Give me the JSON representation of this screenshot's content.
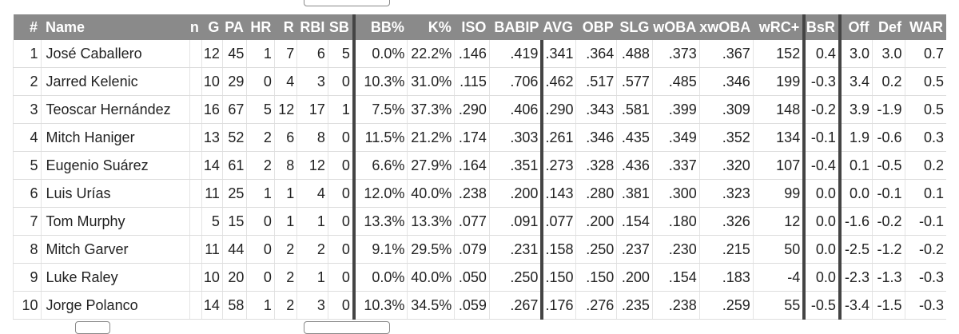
{
  "headers": [
    "#",
    "Name",
    "n",
    "G",
    "PA",
    "HR",
    "R",
    "RBI",
    "SB",
    "BB%",
    "K%",
    "ISO",
    "BABIP",
    "AVG",
    "OBP",
    "SLG",
    "wOBA",
    "xwOBA",
    "wRC+",
    "BsR",
    "Off",
    "Def",
    "WAR"
  ],
  "rows": [
    [
      "1",
      "José Caballero",
      "",
      "12",
      "45",
      "1",
      "7",
      "6",
      "5",
      "0.0%",
      "22.2%",
      ".146",
      ".419",
      ".341",
      ".364",
      ".488",
      ".373",
      ".367",
      "152",
      "0.4",
      "3.0",
      "3.0",
      "0.7"
    ],
    [
      "2",
      "Jarred Kelenic",
      "",
      "10",
      "29",
      "0",
      "4",
      "3",
      "0",
      "10.3%",
      "31.0%",
      ".115",
      ".706",
      ".462",
      ".517",
      ".577",
      ".485",
      ".346",
      "199",
      "-0.3",
      "3.4",
      "0.2",
      "0.5"
    ],
    [
      "3",
      "Teoscar Hernández",
      "",
      "16",
      "67",
      "5",
      "12",
      "17",
      "1",
      "7.5%",
      "37.3%",
      ".290",
      ".406",
      ".290",
      ".343",
      ".581",
      ".399",
      ".309",
      "148",
      "-0.2",
      "3.9",
      "-1.9",
      "0.5"
    ],
    [
      "4",
      "Mitch Haniger",
      "",
      "13",
      "52",
      "2",
      "6",
      "8",
      "0",
      "11.5%",
      "21.2%",
      ".174",
      ".303",
      ".261",
      ".346",
      ".435",
      ".349",
      ".352",
      "134",
      "-0.1",
      "1.9",
      "-0.6",
      "0.3"
    ],
    [
      "5",
      "Eugenio Suárez",
      "",
      "14",
      "61",
      "2",
      "8",
      "12",
      "0",
      "6.6%",
      "27.9%",
      ".164",
      ".351",
      ".273",
      ".328",
      ".436",
      ".337",
      ".320",
      "107",
      "-0.4",
      "0.1",
      "-0.5",
      "0.2"
    ],
    [
      "6",
      "Luis Urías",
      "",
      "11",
      "25",
      "1",
      "1",
      "4",
      "0",
      "12.0%",
      "40.0%",
      ".238",
      ".200",
      ".143",
      ".280",
      ".381",
      ".300",
      ".323",
      "99",
      "0.0",
      "0.0",
      "-0.1",
      "0.1"
    ],
    [
      "7",
      "Tom Murphy",
      "",
      "5",
      "15",
      "0",
      "1",
      "1",
      "0",
      "13.3%",
      "13.3%",
      ".077",
      ".091",
      ".077",
      ".200",
      ".154",
      ".180",
      ".326",
      "12",
      "0.0",
      "-1.6",
      "-0.2",
      "-0.1"
    ],
    [
      "8",
      "Mitch Garver",
      "",
      "11",
      "44",
      "0",
      "2",
      "2",
      "0",
      "9.1%",
      "29.5%",
      ".079",
      ".231",
      ".158",
      ".250",
      ".237",
      ".230",
      ".215",
      "50",
      "0.0",
      "-2.5",
      "-1.2",
      "-0.2"
    ],
    [
      "9",
      "Luke Raley",
      "",
      "10",
      "20",
      "0",
      "2",
      "1",
      "0",
      "0.0%",
      "40.0%",
      ".050",
      ".250",
      ".150",
      ".150",
      ".200",
      ".154",
      ".183",
      "-4",
      "0.0",
      "-2.3",
      "-1.3",
      "-0.3"
    ],
    [
      "10",
      "Jorge Polanco",
      "",
      "14",
      "58",
      "1",
      "2",
      "3",
      "0",
      "10.3%",
      "34.5%",
      ".059",
      ".267",
      ".176",
      ".276",
      ".235",
      ".238",
      ".259",
      "55",
      "-0.5",
      "-3.4",
      "-1.5",
      "-0.3"
    ]
  ]
}
